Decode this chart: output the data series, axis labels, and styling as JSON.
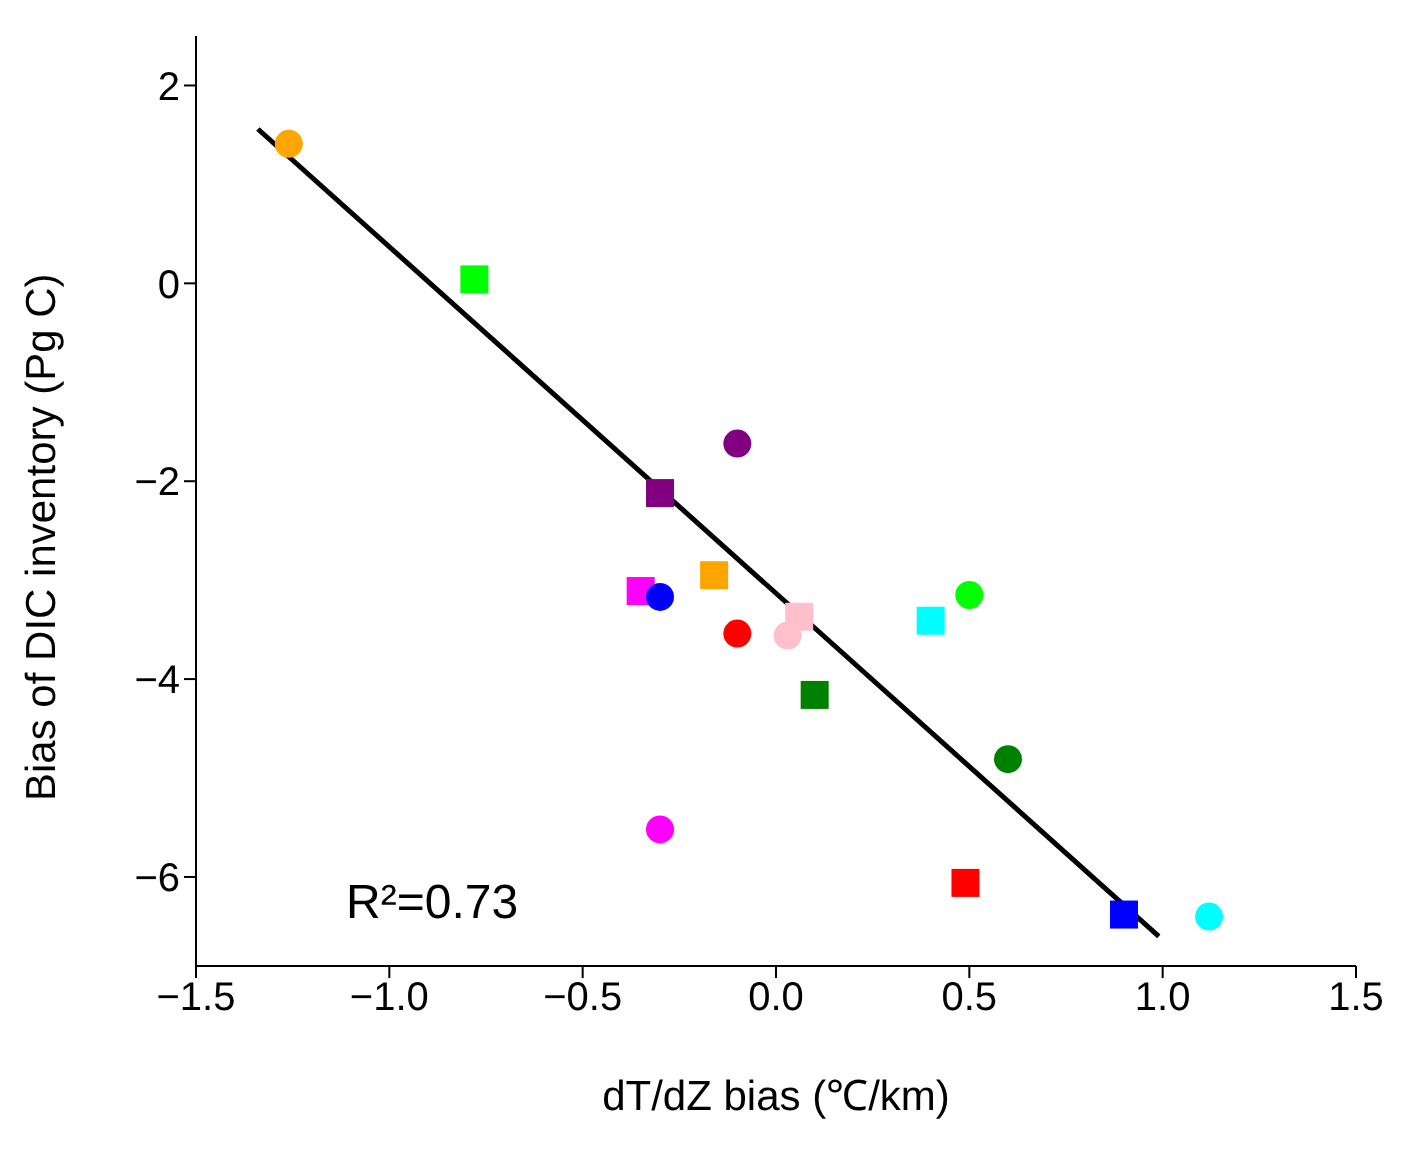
{
  "chart_data": {
    "type": "scatter",
    "xlabel": "dT/dZ bias (℃/km)",
    "ylabel": "Bias of DIC inventory (Pg C)",
    "xlim": [
      -1.5,
      1.5
    ],
    "ylim": [
      -6.9,
      2.5
    ],
    "xticks": [
      {
        "value": -1.5,
        "label": "−1.5"
      },
      {
        "value": -1,
        "label": "−1.0"
      },
      {
        "value": -0.5,
        "label": "−0.5"
      },
      {
        "value": 0,
        "label": "0.0"
      },
      {
        "value": 0.5,
        "label": "0.5"
      },
      {
        "value": 1,
        "label": "1.0"
      },
      {
        "value": 1.5,
        "label": "1.5"
      }
    ],
    "yticks": [
      -6,
      -4,
      -2,
      0,
      2
    ],
    "grid": false,
    "legend": false,
    "annotations": [
      "R²=0.73"
    ],
    "series": [
      {
        "color": "#ffa500",
        "marker": "circle",
        "x": [
          -1.26
        ],
        "values": [
          1.41
        ]
      },
      {
        "color": "#ffa500",
        "marker": "square",
        "x": [
          -0.16
        ],
        "values": [
          -2.95
        ]
      },
      {
        "color": "#00ff00",
        "marker": "square",
        "x": [
          -0.78
        ],
        "values": [
          0.04
        ]
      },
      {
        "color": "#00ff00",
        "marker": "circle",
        "x": [
          0.5
        ],
        "values": [
          -3.15
        ]
      },
      {
        "color": "#800080",
        "marker": "circle",
        "x": [
          -0.1
        ],
        "values": [
          -1.62
        ]
      },
      {
        "color": "#800080",
        "marker": "square",
        "x": [
          -0.3
        ],
        "values": [
          -2.12
        ]
      },
      {
        "color": "#ff00ff",
        "marker": "square",
        "x": [
          -0.35
        ],
        "values": [
          -3.11
        ]
      },
      {
        "color": "#ff00ff",
        "marker": "circle",
        "x": [
          -0.3
        ],
        "values": [
          -5.52
        ]
      },
      {
        "color": "#0000ff",
        "marker": "circle",
        "x": [
          -0.3
        ],
        "values": [
          -3.17
        ]
      },
      {
        "color": "#0000ff",
        "marker": "square",
        "x": [
          0.9
        ],
        "values": [
          -6.38
        ]
      },
      {
        "color": "#ff0000",
        "marker": "circle",
        "x": [
          -0.1
        ],
        "values": [
          -3.54
        ]
      },
      {
        "color": "#ff0000",
        "marker": "square",
        "x": [
          0.49
        ],
        "values": [
          -6.06
        ]
      },
      {
        "color": "#ffc0cb",
        "marker": "square",
        "x": [
          0.06
        ],
        "values": [
          -3.37
        ]
      },
      {
        "color": "#ffc0cb",
        "marker": "circle",
        "x": [
          0.03
        ],
        "values": [
          -3.56
        ]
      },
      {
        "color": "#00ffff",
        "marker": "square",
        "x": [
          0.4
        ],
        "values": [
          -3.41
        ]
      },
      {
        "color": "#00ffff",
        "marker": "circle",
        "x": [
          1.12
        ],
        "values": [
          -6.4
        ]
      },
      {
        "color": "#008000",
        "marker": "square",
        "x": [
          0.1
        ],
        "values": [
          -4.16
        ]
      },
      {
        "color": "#008000",
        "marker": "circle",
        "x": [
          0.6
        ],
        "values": [
          -4.81
        ]
      },
      {
        "type": "line",
        "color": "#000000",
        "marker": "none",
        "x": [
          -1.34,
          0.99
        ],
        "values": [
          1.56,
          -6.6
        ]
      }
    ]
  }
}
